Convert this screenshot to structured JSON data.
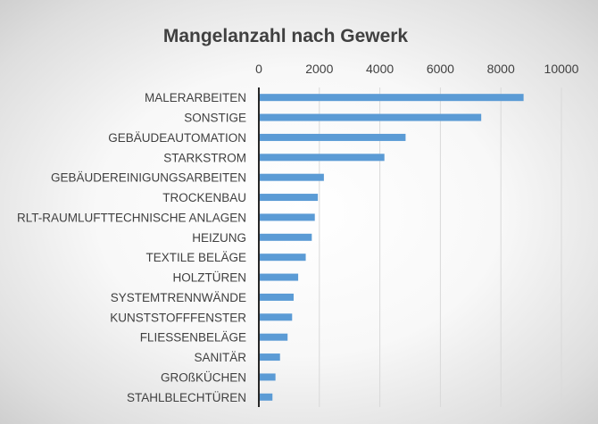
{
  "chart_data": {
    "type": "bar",
    "orientation": "horizontal",
    "title": "Mangelanzahl nach Gewerk",
    "xlabel": "",
    "ylabel": "",
    "xlim": [
      0,
      10000
    ],
    "xticks": [
      0,
      2000,
      4000,
      6000,
      8000,
      10000
    ],
    "x_axis_position": "top",
    "grid": true,
    "legend": "none",
    "bar_color": "#5b9bd5",
    "categories": [
      "MALERARBEITEN",
      "SONSTIGE",
      "GEBÄUDEAUTOMATION",
      "STARKSTROM",
      "GEBÄUDEREINIGUNGSARBEITEN",
      "TROCKENBAU",
      "RLT-RAUMLUFTTECHNISCHE ANLAGEN",
      "HEIZUNG",
      "TEXTILE BELÄGE",
      "HOLZTÜREN",
      "SYSTEMTRENNWÄNDE",
      "KUNSTSTOFFFENSTER",
      "FLIESSENBELÄGE",
      "SANITÄR",
      "GROßKÜCHEN",
      "STAHLBLECHTÜREN"
    ],
    "values": [
      8750,
      7350,
      4850,
      4150,
      2150,
      1950,
      1850,
      1750,
      1550,
      1300,
      1150,
      1100,
      950,
      700,
      550,
      450
    ]
  }
}
